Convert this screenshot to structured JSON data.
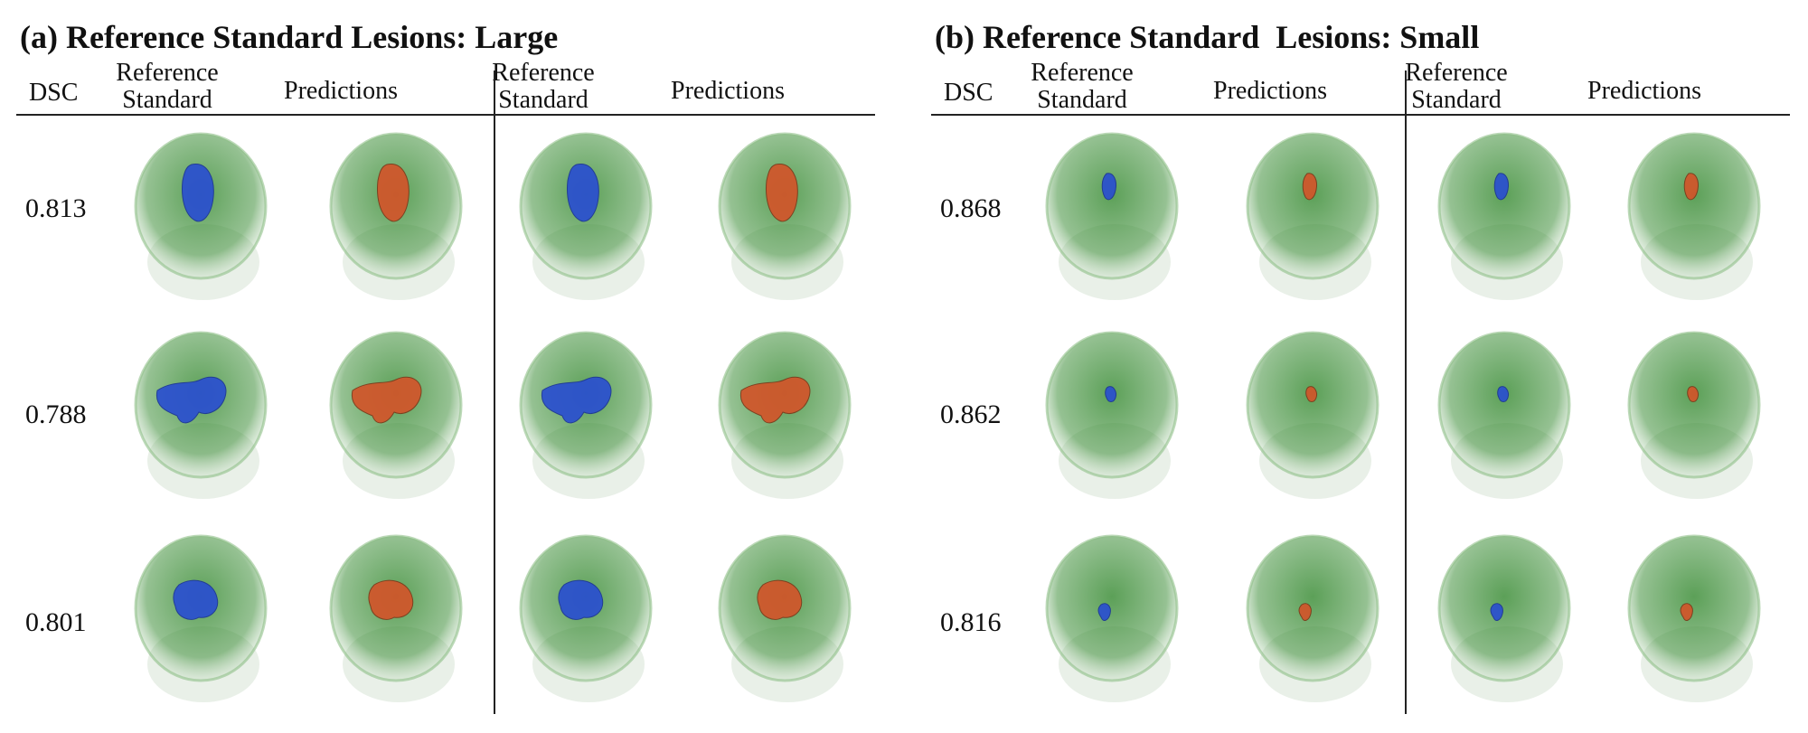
{
  "figure": {
    "panels": [
      {
        "id": "a",
        "title": "(a) Reference Standard Lesions: Large",
        "headers": {
          "dsc": "DSC",
          "reference": [
            "Reference",
            "Standard"
          ],
          "predictions": "Predictions"
        },
        "rows": [
          {
            "dsc": "0.813"
          },
          {
            "dsc": "0.788"
          },
          {
            "dsc": "0.801"
          }
        ]
      },
      {
        "id": "b",
        "title": "(b) Reference Standard  Lesions: Small",
        "headers": {
          "dsc": "DSC",
          "reference": [
            "Reference",
            "Standard"
          ],
          "predictions": "Predictions"
        },
        "rows": [
          {
            "dsc": "0.868"
          },
          {
            "dsc": "0.862"
          },
          {
            "dsc": "0.816"
          }
        ]
      }
    ],
    "colors": {
      "brain": "#3f8f3a",
      "reference_lesion": "#2a4fd0",
      "prediction_lesion": "#d2552a",
      "rule": "#222222"
    }
  }
}
